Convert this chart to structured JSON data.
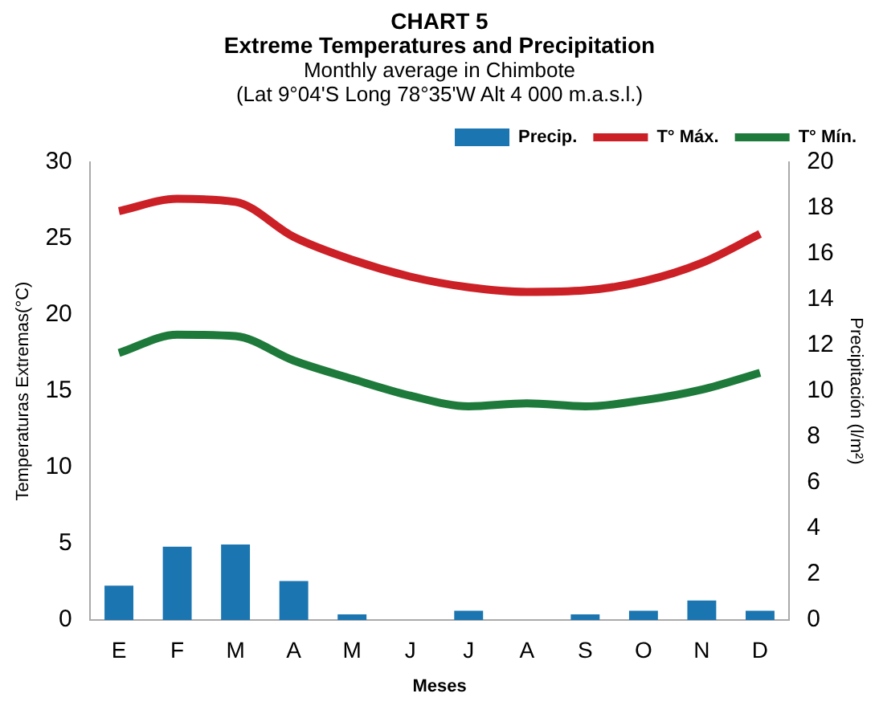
{
  "chart_data": {
    "type": "bar",
    "title": "CHART 5\nExtreme Temperatures and Precipitation",
    "subtitle": "Monthly average in Chimbote\n(Lat 9°04'S Long 78°35'W Alt 4 000 m.a.s.l.)",
    "xlabel": "Meses",
    "ylabel": "Temperaturas Extremas(°C)",
    "y2label": "Precipitación (l/m²)",
    "categories": [
      "E",
      "F",
      "M",
      "A",
      "M",
      "J",
      "J",
      "A",
      "S",
      "O",
      "N",
      "D"
    ],
    "series": [
      {
        "name": "Precip.",
        "axis": "y2",
        "color": "#1a75b0",
        "values": [
          1.5,
          3.2,
          3.3,
          1.7,
          0.25,
          0,
          0.4,
          0,
          0.25,
          0.4,
          0.85,
          0.4
        ]
      },
      {
        "name": "T° Máx.",
        "type": "line",
        "color": "#cc2027",
        "values": [
          26.8,
          27.6,
          27.4,
          25.1,
          23.6,
          22.5,
          21.8,
          21.5,
          21.6,
          22.2,
          23.4,
          25.3
        ]
      },
      {
        "name": "T° Mín.",
        "type": "line",
        "color": "#1e7a3a",
        "values": [
          17.5,
          18.7,
          18.6,
          17.0,
          15.8,
          14.7,
          14.0,
          14.2,
          14.0,
          14.4,
          15.1,
          16.2
        ]
      }
    ],
    "ylim": [
      0,
      30
    ],
    "yticks": [
      0,
      5,
      10,
      15,
      20,
      25,
      30
    ],
    "y2lim": [
      0,
      20
    ],
    "y2ticks": [
      0,
      2,
      4,
      6,
      8,
      10,
      12,
      14,
      16,
      18,
      20
    ],
    "grid": false,
    "legend": "top right",
    "marker": "none",
    "line_style": "solid"
  }
}
